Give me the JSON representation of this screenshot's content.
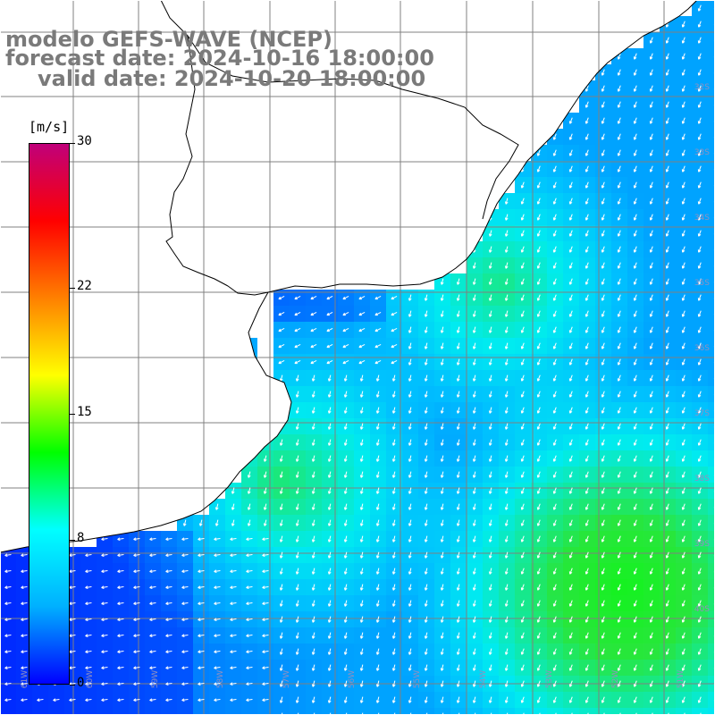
{
  "title": {
    "line1": "modelo GEFS-WAVE (NCEP)",
    "line2": "forecast date: 2024-10-16 18:00:00",
    "line3": "valid date: 2024-10-20 18:00:00"
  },
  "colorbar": {
    "unit": "[m/s]",
    "ticks": [
      "30",
      "22",
      "15",
      "8",
      "0"
    ],
    "tick_values": [
      30,
      22,
      15,
      8,
      0
    ],
    "min": 0,
    "max": 30,
    "colors": [
      "#0000ff",
      "#00b0ff",
      "#00ffff",
      "#00ff00",
      "#ffff00",
      "#ff8000",
      "#ff0000",
      "#c0007a"
    ]
  },
  "map": {
    "ocean_colors": {
      "calm": "#2060ff",
      "moderate": "#00c0ff",
      "strong": "#30e040",
      "land": "#ffffff",
      "coast": "#000000",
      "grid": "#808080",
      "arrow": "#ffffff"
    },
    "lat_labels": [
      "32S",
      "33S",
      "34S",
      "35S",
      "36S",
      "37S",
      "38S",
      "39S",
      "40S"
    ],
    "lon_labels": [
      "61W",
      "60W",
      "59W",
      "58W",
      "57W",
      "56W",
      "55W",
      "54W",
      "53W",
      "52W",
      "51W"
    ]
  }
}
